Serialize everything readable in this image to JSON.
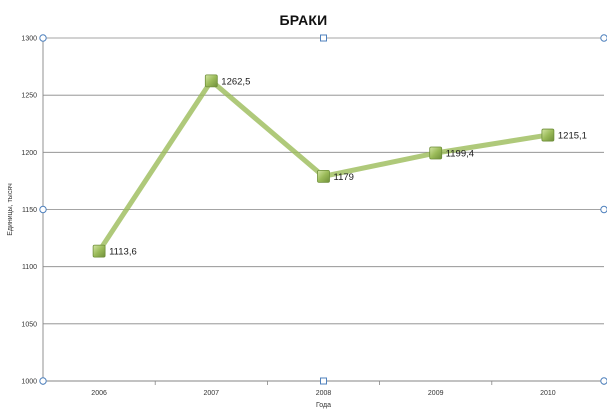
{
  "chart_data": {
    "type": "line",
    "title": "БРАКИ",
    "xlabel": "Года",
    "ylabel": "Единицы, тысяч",
    "categories": [
      "2006",
      "2007",
      "2008",
      "2009",
      "2010"
    ],
    "series": [
      {
        "values": [
          1113.6,
          1262.5,
          1179,
          1199.4,
          1215.1
        ],
        "data_labels": [
          "1113,6",
          "1262,5",
          "1179",
          "1199,4",
          "1215,1"
        ]
      }
    ],
    "ylim": [
      1000,
      1300
    ],
    "yticks": [
      "1000",
      "1050",
      "1100",
      "1150",
      "1200",
      "1250",
      "1300"
    ],
    "grid": true,
    "legend": "none",
    "colors": {
      "line": "#9bbb59",
      "line_opacity": "0.8",
      "marker_fill": "#9bbb59",
      "marker_edge": "#6f8f3a",
      "gridline": "#868686",
      "axis": "#868686",
      "handle": "#4f81bd"
    }
  }
}
